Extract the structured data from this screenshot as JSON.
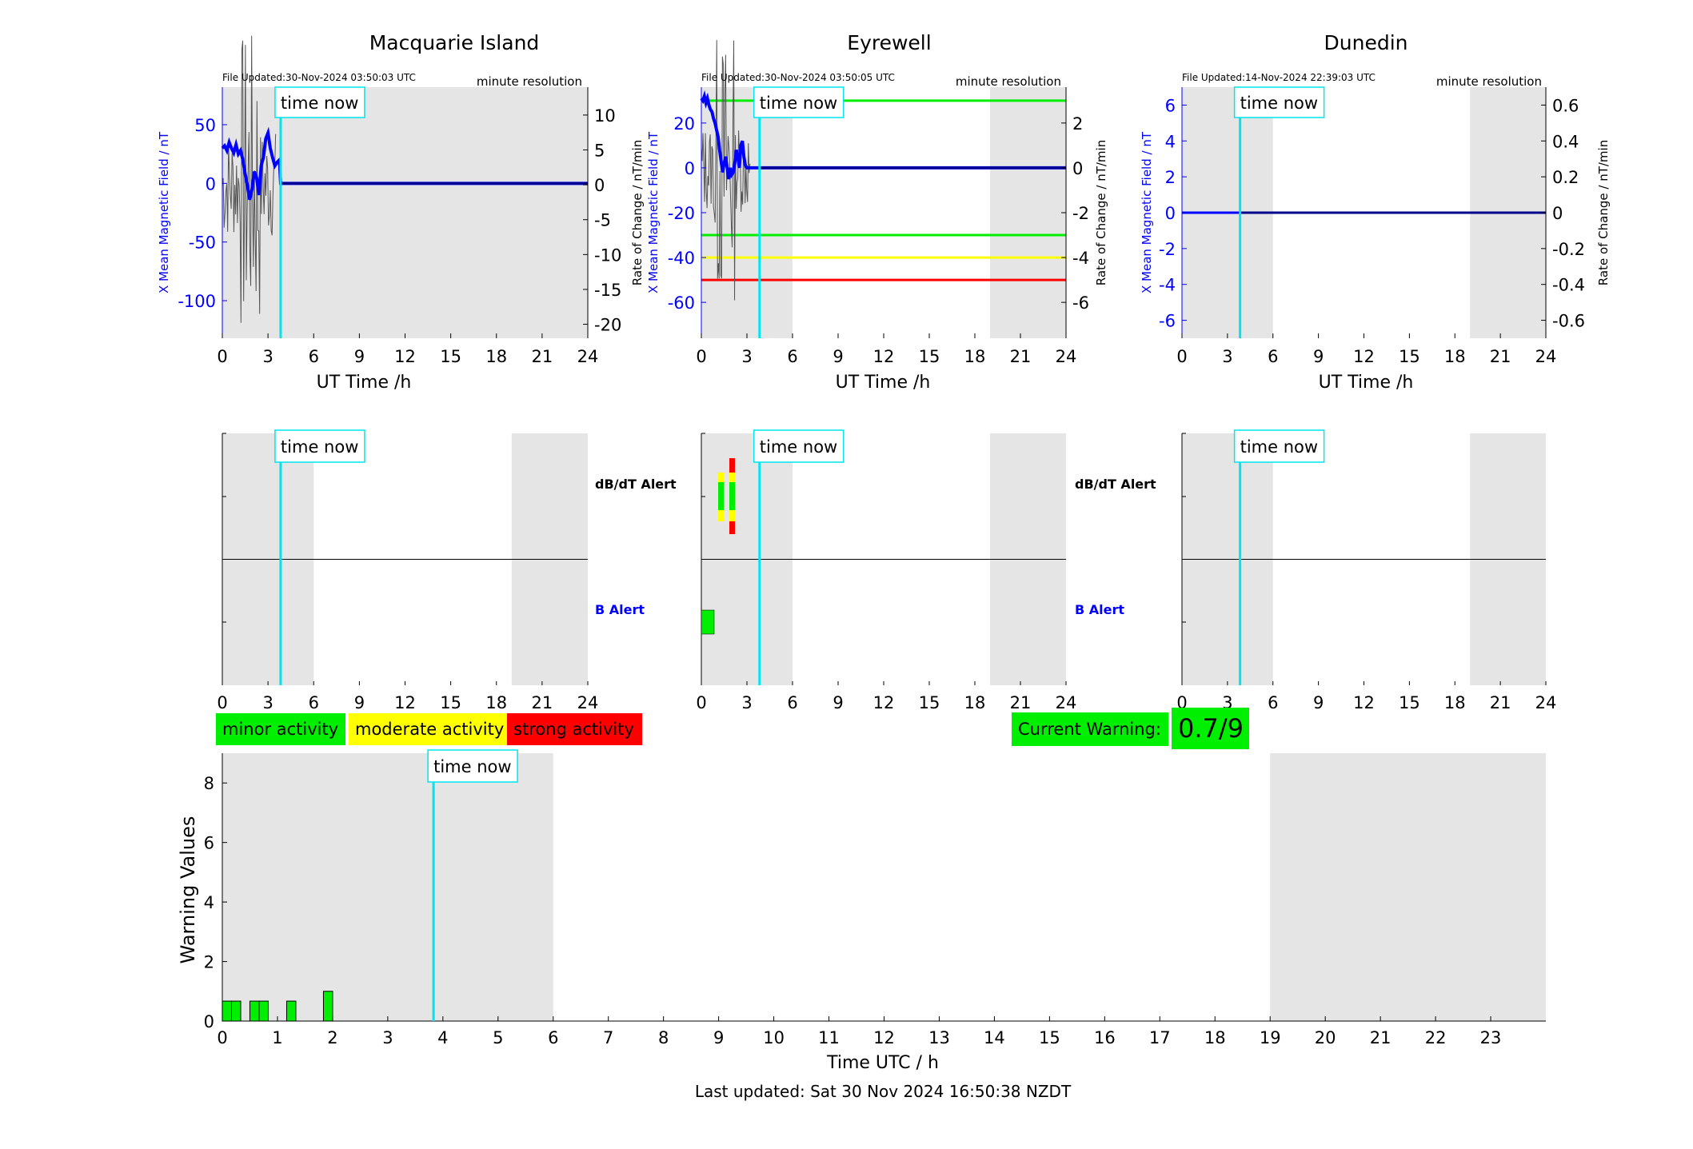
{
  "stations": [
    {
      "name": "Macquarie Island",
      "file_updated": "File Updated:30-Nov-2024 03:50:03 UTC",
      "resolution": "minute resolution",
      "ylabel_left": "X Mean Magnetic Field / nT",
      "ylabel_right": "Rate of Change / nT/min",
      "left_ticks": [
        "50",
        "0",
        "-50",
        "-100"
      ],
      "right_ticks": [
        "10",
        "5",
        "0",
        "-5",
        "-10",
        "-15",
        "-20"
      ]
    },
    {
      "name": "Eyrewell",
      "file_updated": "File Updated:30-Nov-2024 03:50:05 UTC",
      "resolution": "minute resolution",
      "ylabel_left": "X Mean Magnetic Field / nT",
      "ylabel_right": "Rate of Change / nT/min",
      "left_ticks": [
        "20",
        "0",
        "-20",
        "-40",
        "-60"
      ],
      "right_ticks": [
        "2",
        "0",
        "-2",
        "-4",
        "-6"
      ]
    },
    {
      "name": "Dunedin",
      "file_updated": "File Updated:14-Nov-2024 22:39:03 UTC",
      "resolution": "minute resolution",
      "ylabel_left": "X Mean Magnetic Field / nT",
      "ylabel_right": "Rate of Change / nT/min",
      "left_ticks": [
        "6",
        "4",
        "2",
        "0",
        "-2",
        "-4",
        "-6"
      ],
      "right_ticks": [
        "0.6",
        "0.4",
        "0.2",
        "0",
        "-0.2",
        "-0.4",
        "-0.6"
      ]
    }
  ],
  "time_now_label": "time now",
  "x_ticks_24": [
    "0",
    "3",
    "6",
    "9",
    "12",
    "15",
    "18",
    "21",
    "24"
  ],
  "ut_xlabel": "UT Time /h",
  "alert_labels": {
    "dbdt": "dB/dT Alert",
    "b": "B Alert"
  },
  "legend": {
    "minor": "minor activity",
    "moderate": "moderate activity",
    "strong": "strong activity"
  },
  "current_warning": {
    "label": "Current Warning:",
    "value": "0.7/9"
  },
  "warning_chart": {
    "ylabel": "Warning Values",
    "xlabel": "Time UTC / h",
    "y_ticks": [
      "0",
      "2",
      "4",
      "6",
      "8"
    ],
    "x_ticks": [
      "0",
      "1",
      "2",
      "3",
      "4",
      "5",
      "6",
      "7",
      "8",
      "9",
      "10",
      "11",
      "12",
      "13",
      "14",
      "15",
      "16",
      "17",
      "18",
      "19",
      "20",
      "21",
      "22",
      "23"
    ]
  },
  "last_updated": "Last updated: Sat 30 Nov 2024 16:50:38 NZDT",
  "colors": {
    "field": "#0000ff",
    "time_now": "#00e5ee",
    "night": "#e5e5e5",
    "minor": "#00ee00",
    "moderate": "#ffff00",
    "strong": "#ff0000",
    "rate": "#555555"
  },
  "chart_data": [
    {
      "type": "line",
      "title": "Macquarie Island",
      "xlabel": "UT Time /h",
      "ylabel": "X Mean Magnetic Field / nT",
      "y2label": "Rate of Change / nT/min",
      "xlim": [
        0,
        24
      ],
      "ylim": [
        -132,
        82
      ],
      "y2lim": [
        -22,
        14
      ],
      "time_now": 3.83,
      "night_shading": [
        [
          0,
          6
        ],
        [
          19,
          24
        ]
      ],
      "series": [
        {
          "x": [
            0,
            0.15,
            0.3,
            0.45,
            0.6,
            0.75,
            0.9,
            1.05,
            1.2,
            1.35,
            1.5,
            1.65,
            1.8,
            1.95,
            2.1,
            2.25,
            2.4,
            2.55,
            2.7,
            2.85,
            3,
            3.15,
            3.3,
            3.45,
            3.6,
            3.75,
            3.83,
            6,
            9,
            12,
            15,
            18,
            21,
            24
          ],
          "y": [
            30,
            32,
            28,
            35,
            30,
            26,
            33,
            25,
            28,
            20,
            8,
            -2,
            -14,
            -5,
            10,
            5,
            -10,
            15,
            22,
            38,
            43,
            30,
            22,
            15,
            18,
            20,
            0,
            0,
            0,
            0,
            0,
            0,
            0,
            0
          ]
        }
      ]
    },
    {
      "type": "line",
      "title": "Eyrewell",
      "xlabel": "UT Time /h",
      "ylabel": "X Mean Magnetic Field / nT",
      "y2label": "Rate of Change / nT/min",
      "xlim": [
        0,
        24
      ],
      "ylim": [
        -76,
        36
      ],
      "y2lim": [
        -7.6,
        3.6
      ],
      "time_now": 3.83,
      "night_shading": [
        [
          0,
          6
        ],
        [
          19,
          24
        ]
      ],
      "threshold_lines": [
        {
          "value": 30,
          "color": "green"
        },
        {
          "value": -30,
          "color": "green"
        },
        {
          "value": -40,
          "color": "yellow"
        },
        {
          "value": -50,
          "color": "red"
        }
      ],
      "series": [
        {
          "x": [
            0,
            0.1,
            0.2,
            0.3,
            0.4,
            0.5,
            0.6,
            0.7,
            0.8,
            0.9,
            1,
            1.1,
            1.2,
            1.3,
            1.4,
            1.5,
            1.6,
            1.7,
            1.8,
            1.9,
            2,
            2.1,
            2.2,
            2.3,
            2.4,
            2.5,
            2.6,
            2.7,
            2.8,
            2.9,
            3,
            3.83,
            6,
            9,
            12,
            15,
            18,
            21,
            24
          ],
          "y": [
            31,
            30,
            32,
            29,
            31,
            28,
            26,
            25,
            22,
            20,
            17,
            14,
            8,
            3,
            -2,
            2,
            5,
            0,
            -5,
            0,
            -3,
            -2,
            2,
            8,
            5,
            0,
            10,
            12,
            5,
            1,
            0,
            0,
            0,
            0,
            0,
            0,
            0,
            0,
            0
          ]
        }
      ]
    },
    {
      "type": "line",
      "title": "Dunedin",
      "xlabel": "UT Time /h",
      "ylabel": "X Mean Magnetic Field / nT",
      "y2label": "Rate of Change / nT/min",
      "xlim": [
        0,
        24
      ],
      "ylim": [
        -7,
        7
      ],
      "y2lim": [
        -0.7,
        0.7
      ],
      "time_now": 3.83,
      "night_shading": [
        [
          0,
          6
        ],
        [
          19,
          24
        ]
      ],
      "series": [
        {
          "x": [
            0,
            24
          ],
          "y": [
            0,
            0
          ]
        }
      ]
    },
    {
      "type": "bar",
      "title": "",
      "xlabel": "Time UTC / h",
      "ylabel": "Warning Values",
      "xlim": [
        0,
        24
      ],
      "ylim": [
        0,
        9
      ],
      "time_now": 3.83,
      "night_shading": [
        [
          0,
          6
        ],
        [
          19,
          24
        ]
      ],
      "bars": [
        {
          "x": 0.083,
          "value": 0.67
        },
        {
          "x": 0.25,
          "value": 0.67
        },
        {
          "x": 0.583,
          "value": 0.67
        },
        {
          "x": 0.75,
          "value": 0.67
        },
        {
          "x": 1.25,
          "value": 0.67
        },
        {
          "x": 1.917,
          "value": 1.0
        }
      ]
    }
  ]
}
